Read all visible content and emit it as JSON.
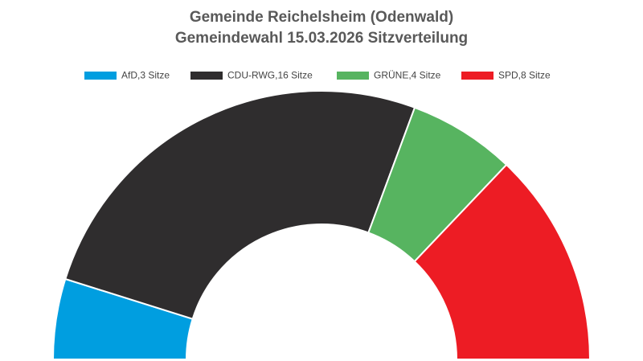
{
  "chart_data": {
    "type": "semicircle",
    "title": "Gemeinde Reichelsheim (Odenwald)",
    "subtitle": "Gemeindewahl 15.03.2026 Sitzverteilung",
    "categories": [
      "AfD,3 Sitze",
      "CDU-RWG,16 Sitze",
      "GRÜNE,4 Sitze",
      "SPD,8 Sitze"
    ],
    "values": [
      3,
      16,
      4,
      8
    ],
    "colors": [
      "#009ee0",
      "#2f2d2e",
      "#57b460",
      "#ed1c24"
    ],
    "legend": "top"
  }
}
